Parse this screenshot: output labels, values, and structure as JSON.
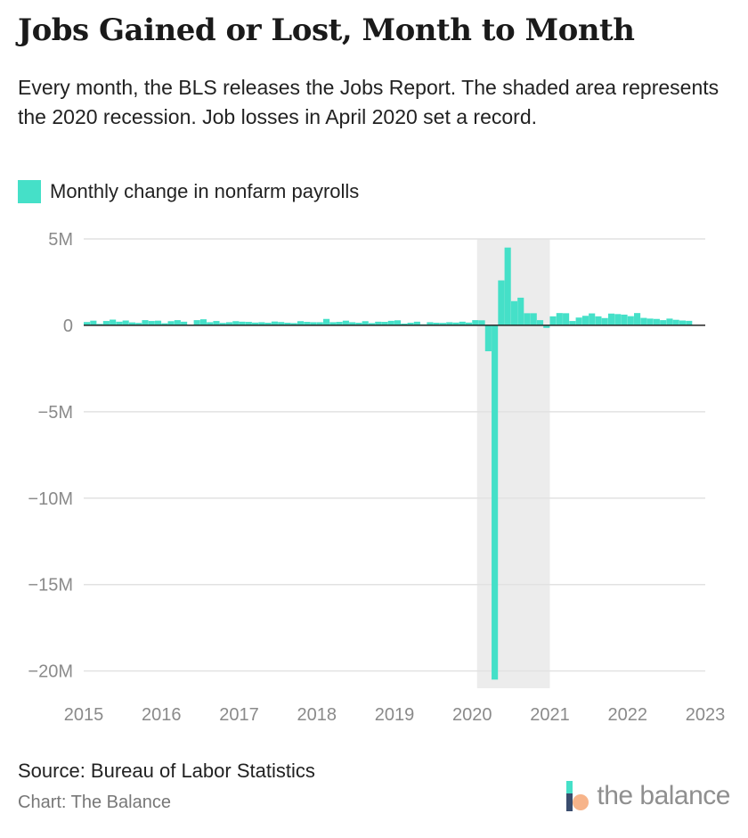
{
  "header": {
    "title": "Jobs Gained or Lost, Month to Month",
    "subtitle": "Every month, the BLS releases the Jobs Report. The shaded area represents the 2020 recession. Job losses in April 2020 set a record."
  },
  "footer": {
    "source": "Source: Bureau of Labor Statistics",
    "credit": "Chart: The Balance",
    "brand": "the balance"
  },
  "colors": {
    "bar": "#45e0c8",
    "recession_shade": "#ececec",
    "gridline": "#e2e2e2",
    "zero_line": "#222222",
    "tick_text": "#8a8a8a"
  },
  "chart_data": {
    "type": "bar",
    "legend": {
      "label": "Monthly change in nonfarm payrolls",
      "placement": "top-left"
    },
    "ylim": [
      -21,
      5
    ],
    "yticks": [
      5,
      0,
      -5,
      -10,
      -15,
      -20
    ],
    "ytick_labels": [
      "5M",
      "0",
      "−5M",
      "−10M",
      "−15M",
      "−20M"
    ],
    "xlim": [
      2015,
      2023
    ],
    "xticks": [
      2015,
      2016,
      2017,
      2018,
      2019,
      2020,
      2021,
      2022,
      2023
    ],
    "xtick_labels": [
      "2015",
      "2016",
      "2017",
      "2018",
      "2019",
      "2020",
      "2021",
      "2022",
      "2023"
    ],
    "grid": true,
    "recession": {
      "start": "2020-02",
      "end": "2020-12"
    },
    "unit": "millions of jobs",
    "start_month": "2015-01",
    "values": [
      0.19,
      0.27,
      0.08,
      0.25,
      0.33,
      0.21,
      0.28,
      0.17,
      0.14,
      0.3,
      0.25,
      0.27,
      0.12,
      0.24,
      0.3,
      0.21,
      0.04,
      0.3,
      0.35,
      0.18,
      0.25,
      0.14,
      0.18,
      0.24,
      0.21,
      0.2,
      0.16,
      0.18,
      0.15,
      0.22,
      0.19,
      0.15,
      0.13,
      0.24,
      0.2,
      0.18,
      0.18,
      0.37,
      0.18,
      0.2,
      0.27,
      0.18,
      0.15,
      0.24,
      0.13,
      0.21,
      0.2,
      0.26,
      0.29,
      0.1,
      0.15,
      0.21,
      0.06,
      0.18,
      0.15,
      0.14,
      0.18,
      0.16,
      0.21,
      0.16,
      0.3,
      0.29,
      -1.5,
      -20.5,
      2.6,
      4.5,
      1.4,
      1.6,
      0.7,
      0.7,
      0.3,
      -0.15,
      0.52,
      0.71,
      0.7,
      0.25,
      0.45,
      0.55,
      0.69,
      0.52,
      0.42,
      0.68,
      0.65,
      0.62,
      0.53,
      0.71,
      0.43,
      0.39,
      0.37,
      0.3,
      0.39,
      0.32,
      0.28,
      0.26
    ]
  }
}
